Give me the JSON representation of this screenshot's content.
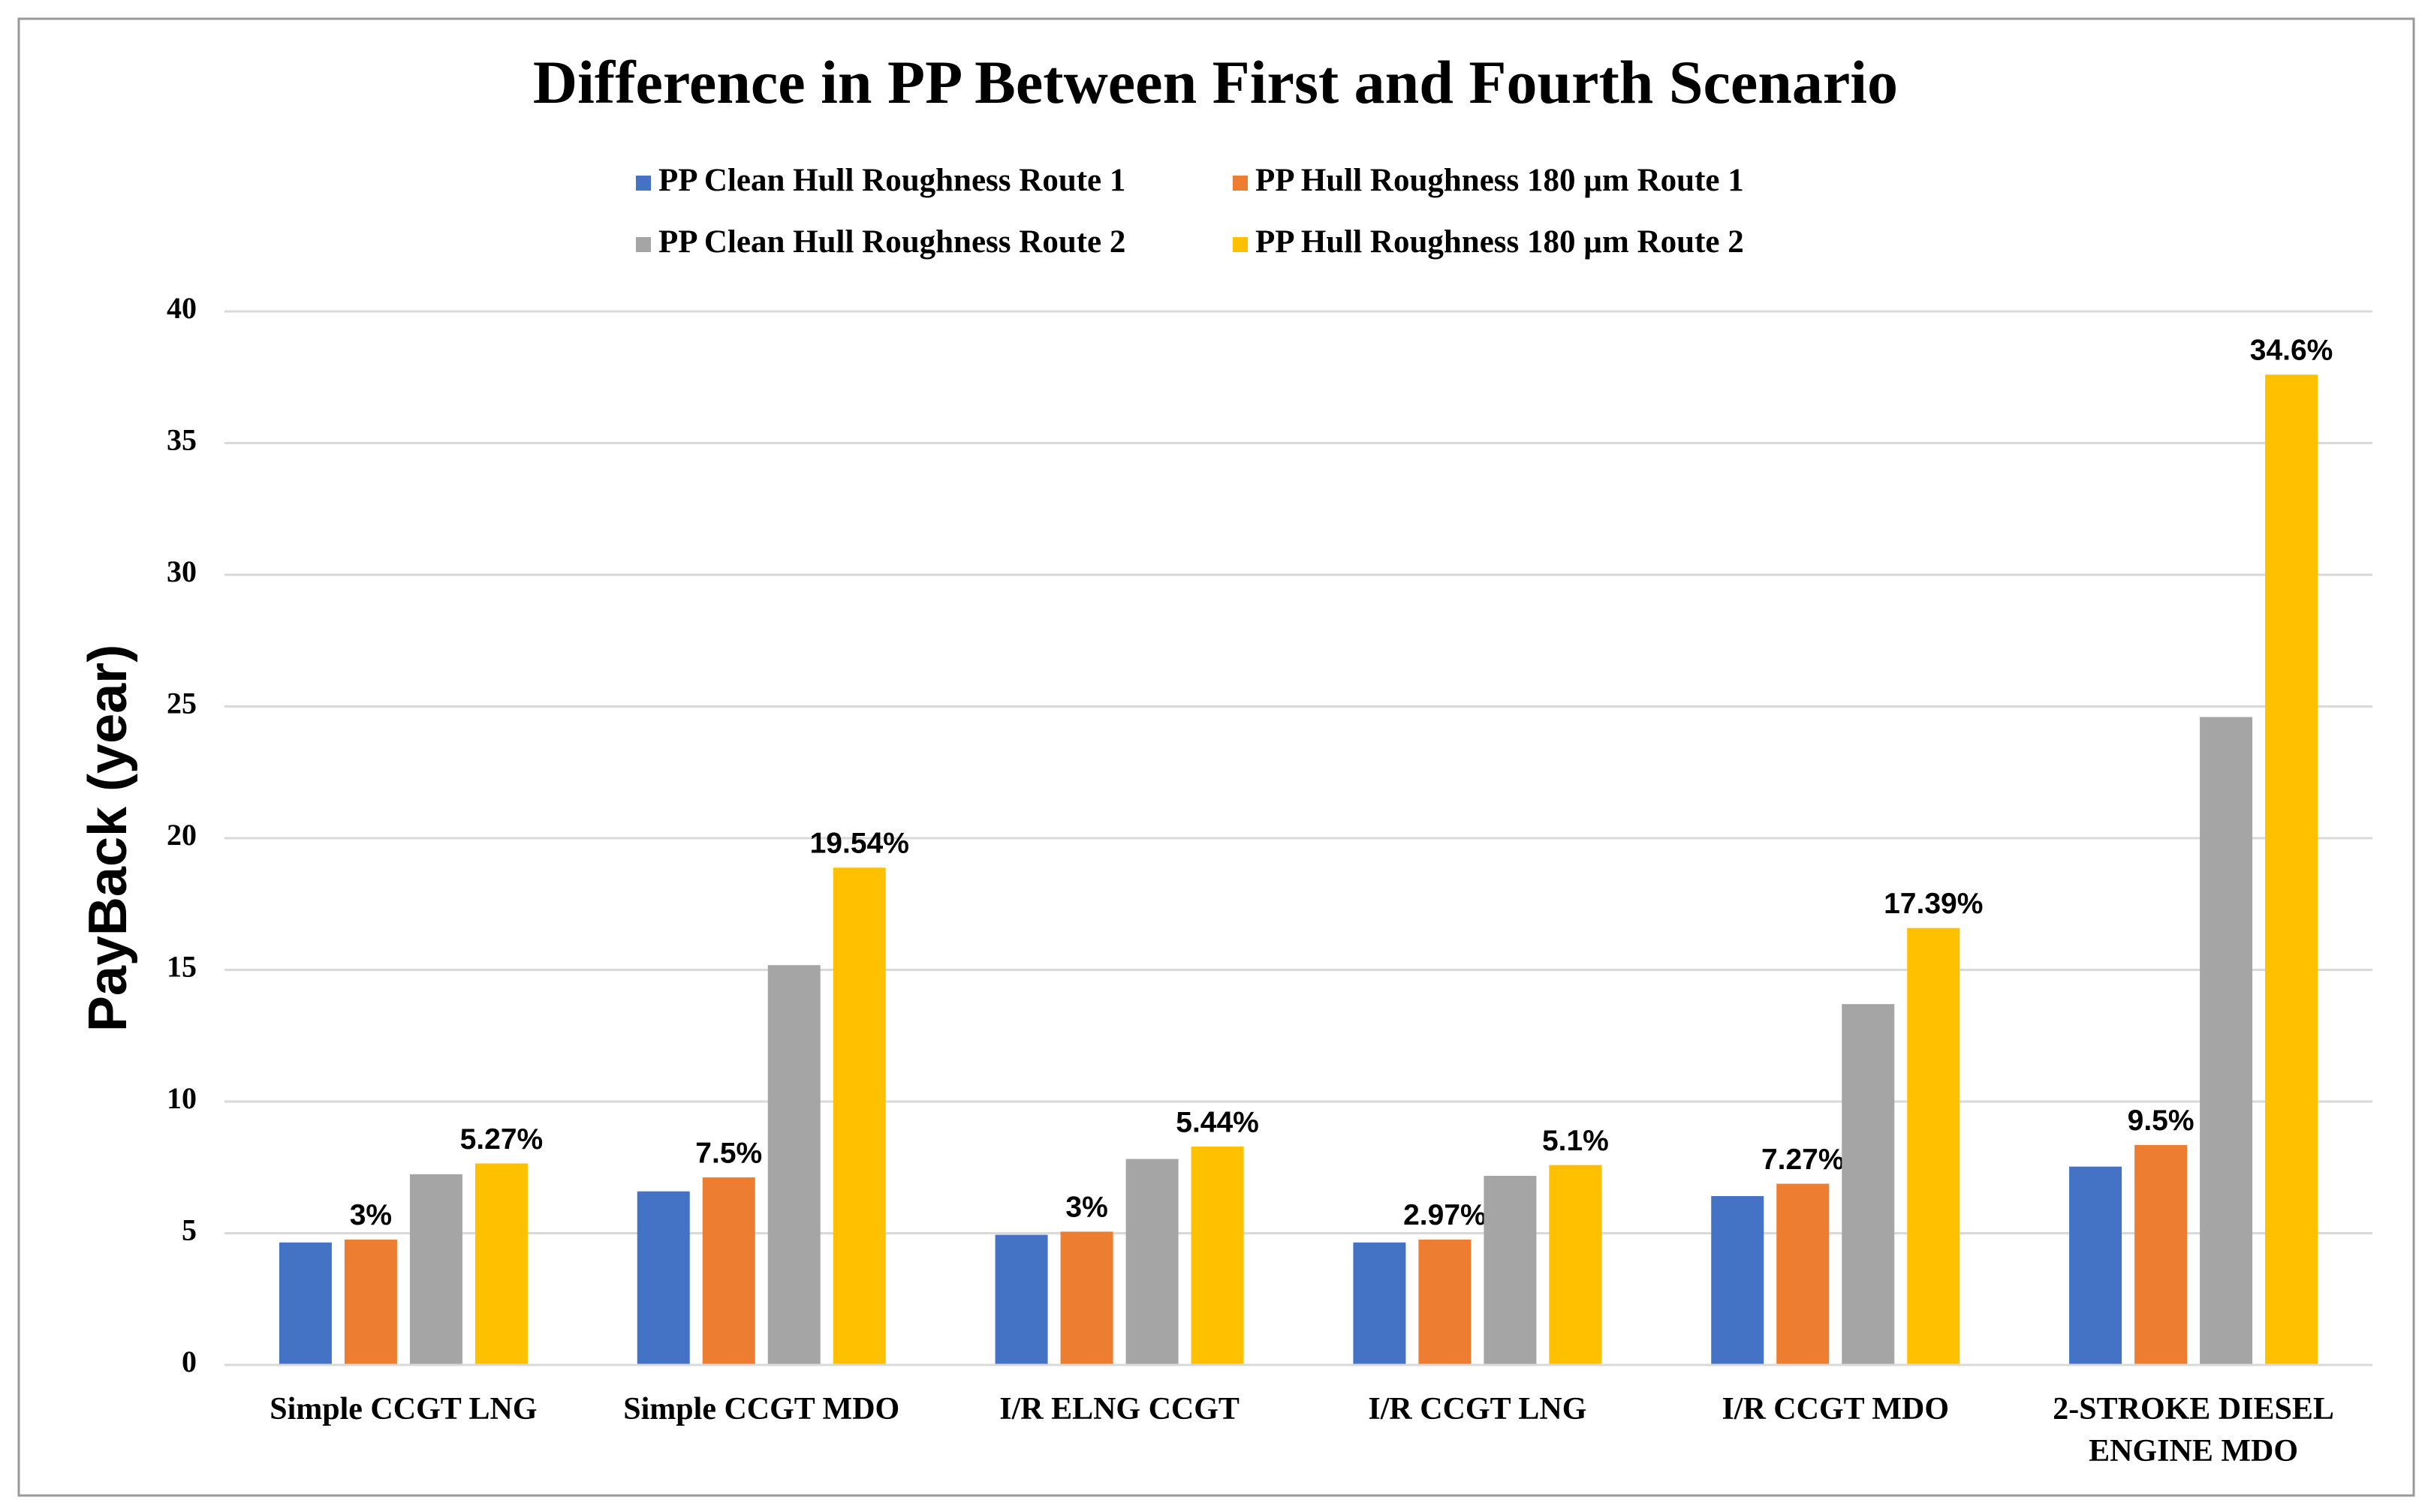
{
  "chart_data": {
    "type": "bar",
    "title": "Difference in PP Between First and Fourth Scenario",
    "y_label": "PayBack (year)",
    "categories": [
      "Simple CCGT LNG",
      "Simple CCGT MDO",
      "I/R ELNG CCGT",
      "I/R CCGT LNG",
      "I/R CCGT MDO",
      "2-STROKE DIESEL\nENGINE MDO"
    ],
    "series": [
      {
        "name": "PP Clean Hull Roughness Route 1",
        "color": "#4472c4",
        "values": [
          4.65,
          6.59,
          4.94,
          4.65,
          6.41,
          7.53
        ]
      },
      {
        "name": "PP Hull Roughness 180 µm Route 1",
        "color": "#ed7d31",
        "values": [
          4.76,
          7.12,
          5.06,
          4.76,
          6.88,
          8.35
        ],
        "annotations": [
          "3%",
          "7.5%",
          "3%",
          "2.97%",
          "7.27%",
          "9.5%"
        ]
      },
      {
        "name": "PP Clean Hull Roughness Route 2",
        "color": "#a5a5a5",
        "values": [
          7.24,
          15.18,
          7.82,
          7.18,
          13.7,
          24.6
        ]
      },
      {
        "name": "PP Hull Roughness 180 µm Route 2",
        "color": "#ffc000",
        "values": [
          7.65,
          18.88,
          8.29,
          7.59,
          16.59,
          37.6
        ],
        "annotations": [
          "5.27%",
          "19.54%",
          "5.44%",
          "5.1%",
          "17.39%",
          "34.6%"
        ]
      }
    ],
    "ylim": [
      0,
      40
    ],
    "yticks": [
      0,
      5,
      10,
      15,
      20,
      25,
      30,
      35,
      40
    ],
    "grid": true
  }
}
